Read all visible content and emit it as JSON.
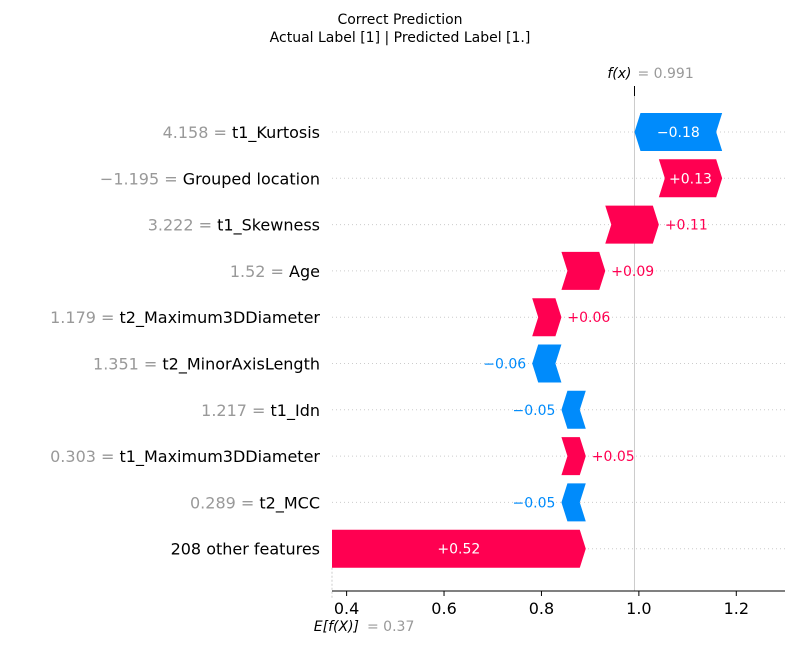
{
  "chart_data": {
    "type": "waterfall",
    "title": "Correct Prediction",
    "subtitle": "Actual Label [1] | Predicted Label [1.]",
    "features": [
      {
        "value_label": "4.158 =",
        "name": "t1_Kurtosis",
        "contribution": -0.18,
        "label": "−0.18"
      },
      {
        "value_label": "−1.195 =",
        "name": "Grouped location",
        "contribution": 0.13,
        "label": "+0.13"
      },
      {
        "value_label": "3.222 =",
        "name": "t1_Skewness",
        "contribution": 0.11,
        "label": "+0.11"
      },
      {
        "value_label": "1.52 =",
        "name": "Age",
        "contribution": 0.09,
        "label": "+0.09"
      },
      {
        "value_label": "1.179 =",
        "name": "t2_Maximum3DDiameter",
        "contribution": 0.06,
        "label": "+0.06"
      },
      {
        "value_label": "1.351 =",
        "name": "t2_MinorAxisLength",
        "contribution": -0.06,
        "label": "−0.06"
      },
      {
        "value_label": "1.217 =",
        "name": "t1_Idn",
        "contribution": -0.05,
        "label": "−0.05"
      },
      {
        "value_label": "0.303 =",
        "name": "t1_Maximum3DDiameter",
        "contribution": 0.05,
        "label": "+0.05"
      },
      {
        "value_label": "0.289 =",
        "name": "t2_MCC",
        "contribution": -0.05,
        "label": "−0.05"
      },
      {
        "value_label": "",
        "name": "208 other features",
        "contribution": 0.52,
        "label": "+0.52"
      }
    ],
    "base_value": 0.37,
    "output_value": 0.991,
    "fx_label": "f(x)",
    "fx_value_label": "= 0.991",
    "efx_label": "E[f(X)]",
    "efx_value_label": "= 0.37",
    "xlim": [
      0.37,
      1.3
    ],
    "xticks": [
      0.4,
      0.6,
      0.8,
      1.0,
      1.2
    ],
    "xtick_labels": [
      "0.4",
      "0.6",
      "0.8",
      "1.0",
      "1.2"
    ],
    "colors": {
      "positive": "#ff0051",
      "negative": "#008bfb",
      "grid": "#cccccc",
      "muted": "#999999"
    }
  }
}
